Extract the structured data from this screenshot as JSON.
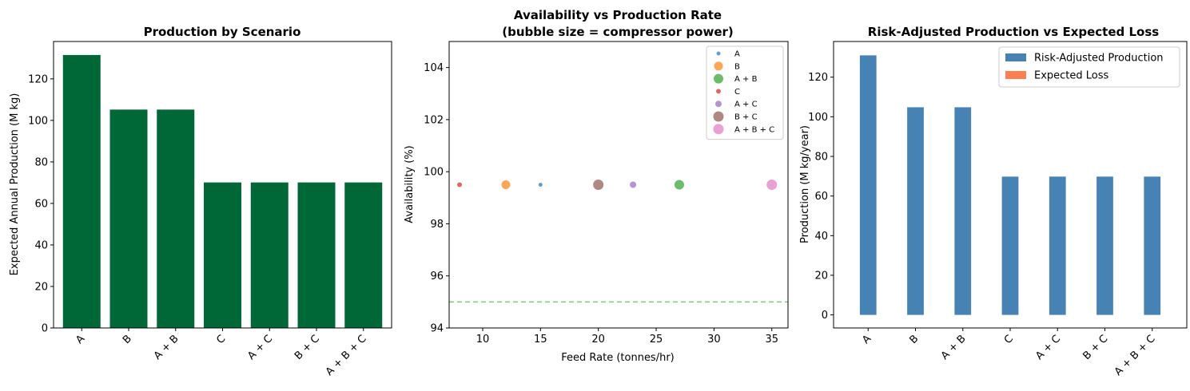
{
  "chart_data": [
    {
      "type": "bar",
      "title": "Production by Scenario",
      "xlabel": "",
      "ylabel": "Expected Annual Production (M kg)",
      "categories": [
        "A",
        "B",
        "A + B",
        "C",
        "A + C",
        "B + C",
        "A + B + C"
      ],
      "values": [
        131.5,
        105.2,
        105.2,
        70.1,
        70.1,
        70.1,
        70.1
      ],
      "ylim": [
        0,
        138
      ],
      "yticks": [
        0,
        20,
        40,
        60,
        80,
        100,
        120
      ],
      "color": "#006837"
    },
    {
      "type": "scatter",
      "title": "Availability vs Production Rate\n(bubble size = compressor power)",
      "xlabel": "Feed Rate (tonnes/hr)",
      "ylabel": "Availability (%)",
      "xlim": [
        7.1,
        36.4
      ],
      "ylim": [
        94,
        105
      ],
      "xticks": [
        10,
        15,
        20,
        25,
        30,
        35
      ],
      "yticks": [
        94,
        96,
        98,
        100,
        102,
        104
      ],
      "reference_line": {
        "y": 95,
        "style": "dashed",
        "color": "#2ca02c"
      },
      "legend_position": "upper right",
      "series": [
        {
          "name": "A",
          "x": 15,
          "y": 99.5,
          "size": 5,
          "color": "#1f77b4"
        },
        {
          "name": "B",
          "x": 12,
          "y": 99.5,
          "size": 11,
          "color": "#ff7f0e"
        },
        {
          "name": "A + B",
          "x": 27,
          "y": 99.5,
          "size": 12,
          "color": "#2ca02c"
        },
        {
          "name": "C",
          "x": 8,
          "y": 99.5,
          "size": 6,
          "color": "#d62728"
        },
        {
          "name": "A + C",
          "x": 23,
          "y": 99.5,
          "size": 8,
          "color": "#9467bd"
        },
        {
          "name": "B + C",
          "x": 20,
          "y": 99.5,
          "size": 13,
          "color": "#8c564b"
        },
        {
          "name": "A + B + C",
          "x": 35,
          "y": 99.5,
          "size": 13,
          "color": "#e377c2"
        }
      ]
    },
    {
      "type": "bar",
      "title": "Risk-Adjusted Production vs Expected Loss",
      "xlabel": "",
      "ylabel": "Production (M kg/year)",
      "categories": [
        "A",
        "B",
        "A + B",
        "C",
        "A + C",
        "B + C",
        "A + B + C"
      ],
      "ylim": [
        -6.6,
        138
      ],
      "yticks": [
        0,
        20,
        40,
        60,
        80,
        100,
        120
      ],
      "legend_position": "upper right",
      "series": [
        {
          "name": "Risk-Adjusted Production",
          "color": "#4682b4",
          "values": [
            131.0,
            104.8,
            104.8,
            69.8,
            69.8,
            69.8,
            69.8
          ]
        },
        {
          "name": "Expected Loss",
          "color": "#ff7f50",
          "values": [
            0,
            0,
            0,
            0,
            0,
            0,
            0
          ]
        }
      ]
    }
  ]
}
